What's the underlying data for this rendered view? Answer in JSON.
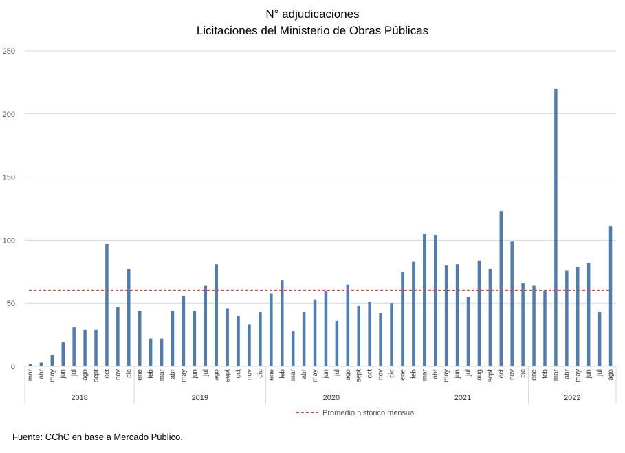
{
  "chart_data": {
    "type": "bar",
    "title": "N° adjudicaciones",
    "subtitle": "Licitaciones del Ministerio de Obras Públicas",
    "ylim": [
      0,
      250
    ],
    "yticks": [
      0,
      50,
      100,
      150,
      200,
      250
    ],
    "grid": true,
    "bar_color": "#4F7DB2",
    "reference_line": {
      "name": "Promedio histórico mensual",
      "value": 60,
      "color": "#C0504D",
      "style": "dashed"
    },
    "legend_position": "bottom",
    "categories": [
      "mar",
      "abr",
      "may",
      "jun",
      "jul",
      "ago",
      "sept",
      "oct",
      "nov",
      "dic",
      "ene",
      "feb",
      "mar",
      "abr",
      "may",
      "jun",
      "jul",
      "ago",
      "sept",
      "oct",
      "nov",
      "dic",
      "ene",
      "feb",
      "mar",
      "abr",
      "may",
      "jun",
      "jul",
      "ago",
      "sept",
      "oct",
      "nov",
      "dic",
      "ene",
      "feb",
      "mar",
      "abr",
      "may",
      "jun",
      "jul",
      "aug",
      "sept",
      "oct",
      "nov",
      "dic",
      "ene",
      "feb",
      "mar",
      "abr",
      "may",
      "jun",
      "jul",
      "ago"
    ],
    "values": [
      2,
      3,
      9,
      19,
      31,
      29,
      29,
      97,
      47,
      77,
      44,
      22,
      22,
      44,
      56,
      44,
      64,
      81,
      46,
      40,
      33,
      43,
      58,
      68,
      28,
      43,
      53,
      60,
      36,
      65,
      48,
      51,
      42,
      50,
      75,
      83,
      105,
      104,
      80,
      81,
      55,
      84,
      77,
      123,
      99,
      66,
      64,
      60,
      220,
      76,
      79,
      82,
      43,
      111
    ],
    "year_groups": [
      {
        "label": "2018",
        "count": 10
      },
      {
        "label": "2019",
        "count": 12
      },
      {
        "label": "2020",
        "count": 12
      },
      {
        "label": "2021",
        "count": 12
      },
      {
        "label": "2022",
        "count": 8
      }
    ]
  },
  "source": "Fuente: CChC en base a Mercado Público."
}
